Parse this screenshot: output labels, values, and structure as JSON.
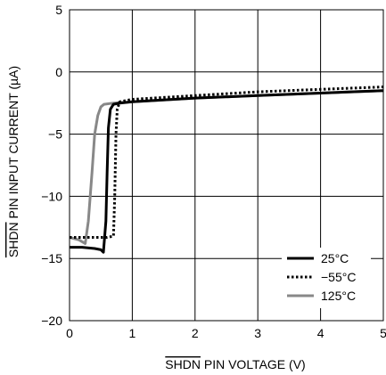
{
  "chart_data": {
    "type": "line",
    "title": "",
    "xlabel": "SHDN PIN VOLTAGE (V)",
    "xlabel_overline": "SHDN",
    "xlabel_rest": " PIN VOLTAGE (V)",
    "ylabel": "SHDN PIN INPUT CURRENT (µA)",
    "ylabel_overline": "SHDN",
    "ylabel_rest": " PIN INPUT CURRENT (µA)",
    "xlim": [
      0,
      5
    ],
    "ylim": [
      -20,
      5
    ],
    "xticks": [
      0,
      1,
      2,
      3,
      4,
      5
    ],
    "yticks": [
      5,
      0,
      -5,
      -10,
      -15,
      -20
    ],
    "xtick_labels": [
      "0",
      "1",
      "2",
      "3",
      "4",
      "5"
    ],
    "ytick_labels": [
      "5",
      "0",
      "−5",
      "−10",
      "−15",
      "−20"
    ],
    "grid": true,
    "legend_position": "bottom-right",
    "series": [
      {
        "name": "25°C",
        "style": "solid",
        "color": "#000000",
        "x": [
          0,
          0.2,
          0.4,
          0.5,
          0.54,
          0.58,
          0.6,
          0.62,
          0.65,
          0.7,
          0.8,
          1.0,
          2.0,
          3.0,
          4.0,
          5.0
        ],
        "y": [
          -14.1,
          -14.1,
          -14.2,
          -14.3,
          -14.5,
          -12.0,
          -8.0,
          -4.5,
          -3.0,
          -2.6,
          -2.5,
          -2.4,
          -2.1,
          -1.9,
          -1.7,
          -1.5
        ]
      },
      {
        "name": "−55°C",
        "style": "dotted",
        "color": "#000000",
        "x": [
          0,
          0.3,
          0.6,
          0.7,
          0.72,
          0.74,
          0.76,
          0.8,
          1.0,
          2.0,
          3.0,
          4.0,
          5.0
        ],
        "y": [
          -13.3,
          -13.3,
          -13.3,
          -13.2,
          -10.0,
          -5.0,
          -3.0,
          -2.4,
          -2.2,
          -1.9,
          -1.6,
          -1.4,
          -1.2
        ]
      },
      {
        "name": "125°C",
        "style": "solid",
        "color": "#888888",
        "x": [
          0,
          0.15,
          0.25,
          0.3,
          0.36,
          0.4,
          0.45,
          0.5,
          0.55,
          0.7,
          1.0,
          2.0,
          3.0,
          4.0,
          5.0
        ],
        "y": [
          -13.3,
          -13.5,
          -13.8,
          -12.0,
          -8.0,
          -5.0,
          -3.5,
          -2.8,
          -2.6,
          -2.5,
          -2.4,
          -2.1,
          -1.9,
          -1.7,
          -1.5
        ]
      }
    ]
  }
}
